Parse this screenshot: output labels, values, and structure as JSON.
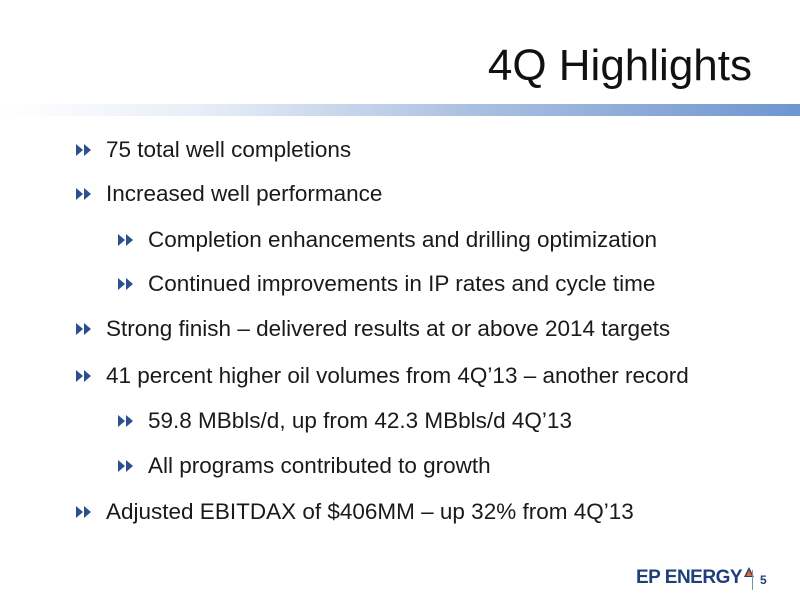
{
  "slide": {
    "title": "4Q Highlights",
    "bullets": [
      {
        "level": 1,
        "text": "75 total well completions"
      },
      {
        "level": 1,
        "text": "Increased well performance"
      },
      {
        "level": 2,
        "text": "Completion enhancements and drilling optimization"
      },
      {
        "level": 2,
        "text": "Continued improvements in IP rates and cycle time"
      },
      {
        "level": 1,
        "text": "Strong finish – delivered results at or above 2014 targets"
      },
      {
        "level": 1,
        "text": "41 percent higher oil volumes from 4Q’13 – another record"
      },
      {
        "level": 2,
        "text": "59.8 MBbls/d, up from 42.3 MBbls/d 4Q’13"
      },
      {
        "level": 2,
        "text": "All programs contributed to growth"
      },
      {
        "level": 1,
        "text": "Adjusted EBITDAX of $406MM – up 32% from 4Q’13"
      }
    ],
    "bullet_icon": "double-chevron-right-icon",
    "footer": {
      "logo_text": "EP ENERGY",
      "page_number": "5"
    },
    "colors": {
      "bullet_icon": "#2b4f8f",
      "logo": "#1f3f7a",
      "logo_mark": "#e86a2a",
      "title_rule_end": "#6f95d0"
    }
  }
}
